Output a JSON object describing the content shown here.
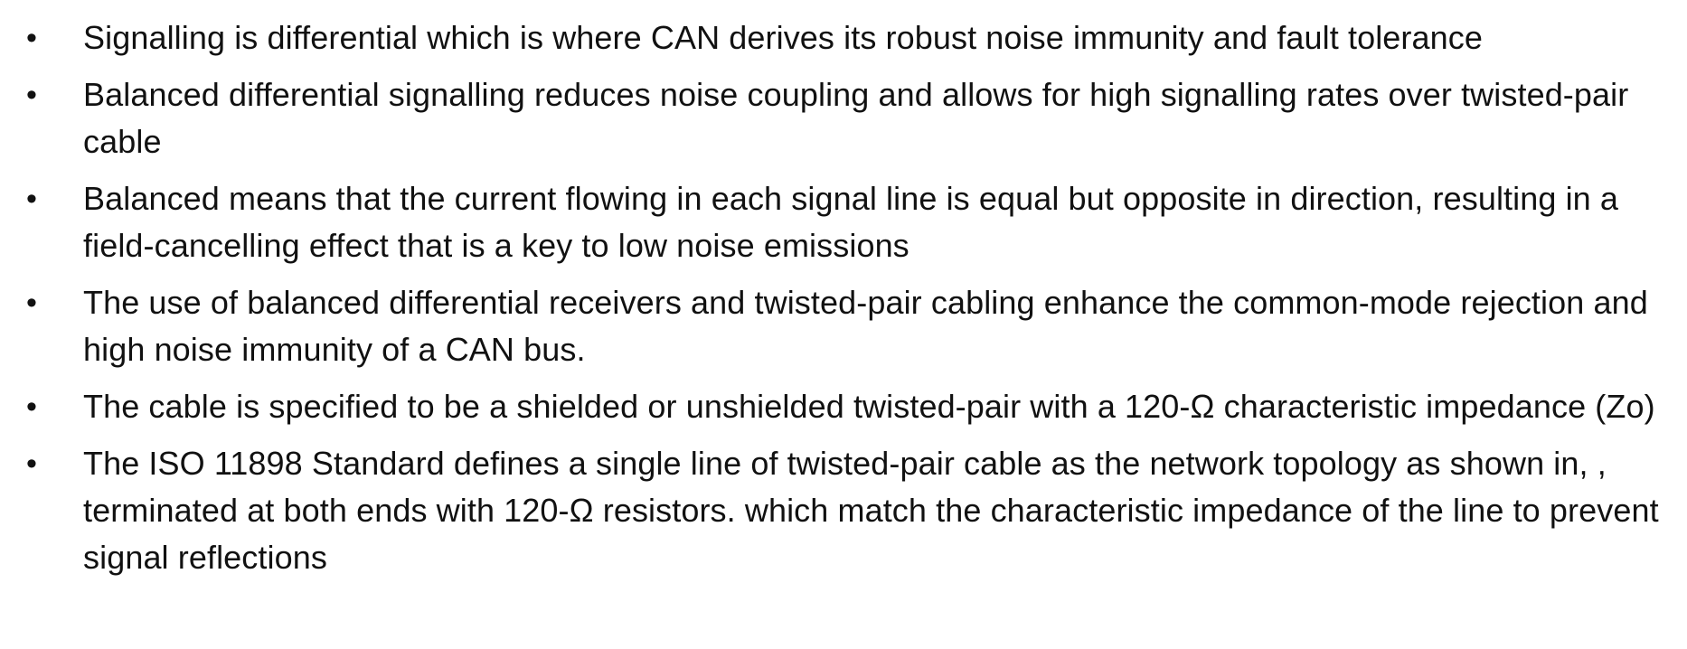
{
  "bullet_symbol": "•",
  "bullets": [
    "Signalling is differential which is where CAN derives its robust noise immunity and fault tolerance",
    "Balanced differential signalling reduces noise coupling and allows for high signalling rates over twisted-pair cable",
    "Balanced means that the current flowing in each signal line is equal but opposite in direction, resulting in a field-cancelling  effect that is a key to low noise emissions",
    "The use of balanced differential receivers and twisted-pair cabling enhance the common-mode rejection and high noise immunity of a CAN bus.",
    "The cable is specified to be a shielded or unshielded twisted-pair with a 120-Ω characteristic impedance (Zo)",
    "The ISO 11898 Standard defines a single line of twisted-pair cable as the network topology as shown in, , terminated at both ends with 120-Ω resistors. which match the characteristic impedance of the line to prevent signal reflections"
  ]
}
